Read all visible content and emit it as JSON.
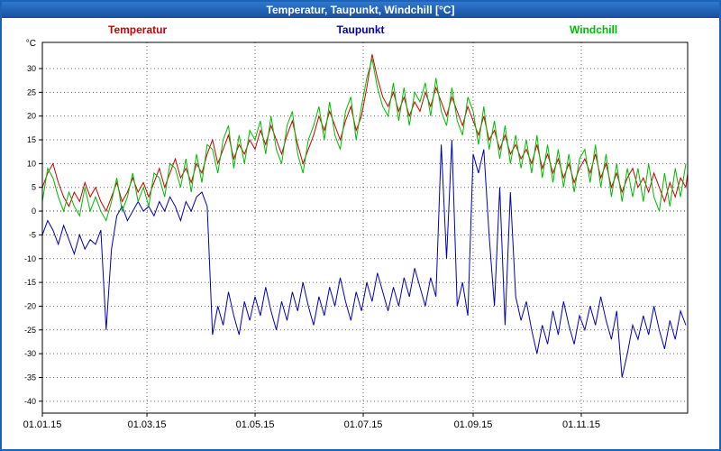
{
  "window": {
    "title": "Temperatur, Taupunkt, Windchill [°C]"
  },
  "colors": {
    "titlebar": "#1c63b8",
    "titlebar_text": "#ffffff",
    "frame": "#1c63b8",
    "plot_bg": "#ffffff",
    "grid": "#666666",
    "zero_line": "#333333",
    "axis": "#000000"
  },
  "chart_data": {
    "type": "line",
    "title": "Temperatur, Taupunkt, Windchill [°C]",
    "y_unit_label": "°C",
    "xlabel": "",
    "ylabel": "°C",
    "ylim": [
      -42.5,
      35.5
    ],
    "y_ticks": [
      30,
      25,
      20,
      15,
      10,
      5,
      0,
      -5,
      -10,
      -15,
      -20,
      -25,
      -30,
      -35,
      -40
    ],
    "x_range_days": [
      1,
      365
    ],
    "x_tick_days": [
      1,
      60,
      121,
      182,
      244,
      305
    ],
    "x_tick_labels": [
      "01.01.15",
      "01.03.15",
      "01.05.15",
      "01.07.15",
      "01.09.15",
      "01.11.15"
    ],
    "grid_v_days": [
      60,
      121,
      182,
      244,
      305
    ],
    "grid": "dashed",
    "legend_position": "top",
    "sample_start_day": 1,
    "sample_interval_days": 3,
    "series": [
      {
        "name": "Temperatur",
        "color": "#cc0000",
        "values": [
          5,
          8,
          10,
          6,
          3,
          1,
          4,
          2,
          6,
          3,
          5,
          2,
          0,
          3,
          6,
          2,
          4,
          7,
          4,
          6,
          3,
          6,
          9,
          5,
          8,
          11,
          7,
          9,
          6,
          10,
          8,
          12,
          15,
          10,
          13,
          16,
          11,
          14,
          12,
          15,
          13,
          17,
          14,
          18,
          15,
          12,
          16,
          19,
          14,
          10,
          13,
          16,
          20,
          17,
          21,
          18,
          15,
          19,
          22,
          17,
          20,
          26,
          33,
          28,
          24,
          22,
          25,
          21,
          24,
          20,
          23,
          21,
          25,
          22,
          26,
          23,
          20,
          24,
          21,
          18,
          22,
          19,
          16,
          20,
          15,
          17,
          13,
          16,
          12,
          14,
          11,
          13,
          10,
          14,
          9,
          12,
          8,
          11,
          7,
          10,
          6,
          9,
          11,
          8,
          12,
          7,
          10,
          5,
          8,
          4,
          7,
          9,
          5,
          7,
          4,
          8,
          5,
          2,
          6,
          3,
          7,
          5,
          8
        ]
      },
      {
        "name": "Taupunkt",
        "color": "#0000bb",
        "values": [
          -5,
          -2,
          -4,
          -7,
          -3,
          -6,
          -9,
          -5,
          -8,
          -6,
          -7,
          -4,
          -25,
          -8,
          -1,
          1,
          -2,
          0,
          2,
          0,
          1,
          -1,
          2,
          0,
          3,
          1,
          -2,
          2,
          0,
          3,
          4,
          1,
          -26,
          -20,
          -24,
          -17,
          -22,
          -26,
          -19,
          -23,
          -18,
          -22,
          -16,
          -21,
          -25,
          -19,
          -23,
          -17,
          -21,
          -15,
          -20,
          -24,
          -18,
          -22,
          -16,
          -20,
          -14,
          -19,
          -23,
          -17,
          -21,
          -15,
          -19,
          -13,
          -17,
          -21,
          -16,
          -20,
          -14,
          -18,
          -12,
          -16,
          -20,
          -14,
          -18,
          14,
          -10,
          15,
          -20,
          -15,
          -22,
          12,
          8,
          13,
          -5,
          -20,
          5,
          -24,
          4,
          -18,
          -23,
          -19,
          -25,
          -30,
          -24,
          -28,
          -21,
          -26,
          -19,
          -24,
          -28,
          -22,
          -25,
          -20,
          -24,
          -18,
          -23,
          -27,
          -21,
          -35,
          -30,
          -24,
          -27,
          -22,
          -26,
          -20,
          -25,
          -29,
          -23,
          -27,
          -21,
          -24
        ]
      },
      {
        "name": "Windchill",
        "color": "#00bb00",
        "values": [
          2,
          9,
          7,
          3,
          0,
          4,
          1,
          -1,
          5,
          0,
          3,
          0,
          -2,
          2,
          7,
          0,
          3,
          8,
          2,
          5,
          1,
          8,
          7,
          3,
          10,
          9,
          5,
          11,
          4,
          12,
          6,
          14,
          13,
          8,
          15,
          18,
          9,
          16,
          10,
          17,
          15,
          19,
          12,
          20,
          13,
          10,
          18,
          21,
          12,
          8,
          15,
          18,
          22,
          15,
          23,
          16,
          13,
          21,
          24,
          15,
          22,
          28,
          32,
          26,
          22,
          20,
          27,
          19,
          26,
          18,
          25,
          23,
          27,
          20,
          28,
          21,
          18,
          26,
          19,
          16,
          24,
          21,
          14,
          22,
          13,
          19,
          11,
          18,
          10,
          16,
          9,
          15,
          8,
          16,
          7,
          14,
          6,
          13,
          5,
          12,
          4,
          11,
          13,
          6,
          14,
          5,
          12,
          3,
          10,
          2,
          9,
          3,
          9,
          2,
          10,
          3,
          0,
          8,
          1,
          9,
          3,
          10
        ]
      }
    ]
  }
}
